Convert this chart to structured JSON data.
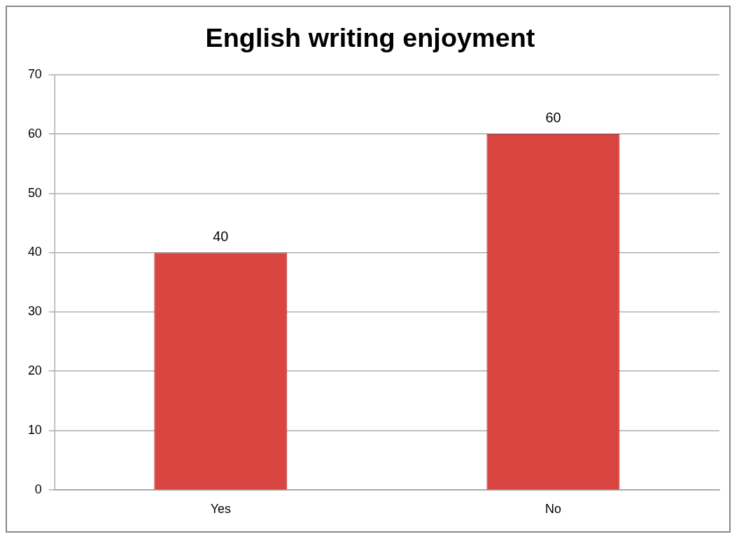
{
  "chart_data": {
    "type": "bar",
    "title": "English writing enjoyment",
    "categories": [
      "Yes",
      "No"
    ],
    "values": [
      40,
      60
    ],
    "color": "#d94540",
    "ylim": [
      0,
      70
    ],
    "yticks": [
      0,
      10,
      20,
      30,
      40,
      50,
      60,
      70
    ],
    "grid": "y",
    "data_labels": true
  }
}
